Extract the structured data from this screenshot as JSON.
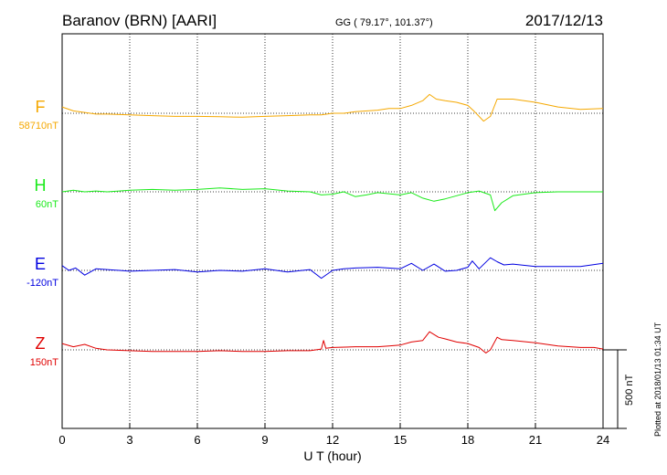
{
  "header": {
    "station": "Baranov (BRN)  [AARI]",
    "coords": "GG ( 79.17°, 101.37°)",
    "date": "2017/12/13"
  },
  "footer_note": "Plotted at 2018/01/13 01:34 UT",
  "scale_label": "500 nT",
  "chart_data": {
    "type": "line",
    "xlabel": "U T (hour)",
    "xlim": [
      0,
      24
    ],
    "xticks": [
      0,
      3,
      6,
      9,
      12,
      15,
      18,
      21,
      24
    ],
    "grid": true,
    "series": [
      {
        "name": "F",
        "baseline_label": "58710nT",
        "baseline_value": 58710,
        "color": "#f5a800",
        "values": [
          [
            0,
            58750
          ],
          [
            0.5,
            58725
          ],
          [
            1,
            58715
          ],
          [
            1.5,
            58705
          ],
          [
            2,
            58705
          ],
          [
            3,
            58700
          ],
          [
            4,
            58695
          ],
          [
            5,
            58690
          ],
          [
            6,
            58690
          ],
          [
            7,
            58688
          ],
          [
            8,
            58685
          ],
          [
            9,
            58690
          ],
          [
            10,
            58695
          ],
          [
            11,
            58700
          ],
          [
            11.5,
            58700
          ],
          [
            12,
            58710
          ],
          [
            12.5,
            58710
          ],
          [
            13,
            58720
          ],
          [
            14,
            58730
          ],
          [
            14.5,
            58740
          ],
          [
            15,
            58740
          ],
          [
            15.5,
            58760
          ],
          [
            16,
            58790
          ],
          [
            16.3,
            58830
          ],
          [
            16.6,
            58800
          ],
          [
            17,
            58790
          ],
          [
            17.5,
            58780
          ],
          [
            18,
            58760
          ],
          [
            18.3,
            58720
          ],
          [
            18.7,
            58660
          ],
          [
            19,
            58690
          ],
          [
            19.3,
            58800
          ],
          [
            19.5,
            58800
          ],
          [
            20,
            58800
          ],
          [
            20.5,
            58790
          ],
          [
            21,
            58780
          ],
          [
            22,
            58750
          ],
          [
            23,
            58735
          ],
          [
            24,
            58740
          ]
        ]
      },
      {
        "name": "H",
        "baseline_label": "60nT",
        "baseline_value": 60,
        "color": "#1aea1a",
        "values": [
          [
            0,
            60
          ],
          [
            0.5,
            70
          ],
          [
            1,
            60
          ],
          [
            1.5,
            65
          ],
          [
            2,
            60
          ],
          [
            3,
            70
          ],
          [
            4,
            75
          ],
          [
            5,
            70
          ],
          [
            6,
            75
          ],
          [
            7,
            85
          ],
          [
            8,
            75
          ],
          [
            9,
            80
          ],
          [
            10,
            65
          ],
          [
            11,
            60
          ],
          [
            11.5,
            40
          ],
          [
            12,
            45
          ],
          [
            12.5,
            60
          ],
          [
            13,
            30
          ],
          [
            13.5,
            40
          ],
          [
            14,
            55
          ],
          [
            15,
            40
          ],
          [
            15.5,
            55
          ],
          [
            16,
            20
          ],
          [
            16.5,
            0
          ],
          [
            17,
            15
          ],
          [
            17.5,
            35
          ],
          [
            18,
            55
          ],
          [
            18.5,
            65
          ],
          [
            19,
            40
          ],
          [
            19.2,
            -60
          ],
          [
            19.5,
            -10
          ],
          [
            20,
            35
          ],
          [
            21,
            55
          ],
          [
            22,
            60
          ],
          [
            23,
            60
          ],
          [
            24,
            60
          ]
        ]
      },
      {
        "name": "E",
        "baseline_label": "-120nT",
        "baseline_value": -120,
        "color": "#0000e0",
        "values": [
          [
            0,
            -90
          ],
          [
            0.3,
            -120
          ],
          [
            0.6,
            -105
          ],
          [
            1,
            -150
          ],
          [
            1.5,
            -110
          ],
          [
            2,
            -115
          ],
          [
            3,
            -125
          ],
          [
            4,
            -120
          ],
          [
            5,
            -115
          ],
          [
            6,
            -130
          ],
          [
            7,
            -120
          ],
          [
            8,
            -125
          ],
          [
            9,
            -110
          ],
          [
            10,
            -130
          ],
          [
            11,
            -115
          ],
          [
            11.5,
            -170
          ],
          [
            12,
            -120
          ],
          [
            12.5,
            -110
          ],
          [
            13,
            -105
          ],
          [
            14,
            -100
          ],
          [
            15,
            -110
          ],
          [
            15.5,
            -75
          ],
          [
            16,
            -120
          ],
          [
            16.5,
            -80
          ],
          [
            17,
            -125
          ],
          [
            17.5,
            -120
          ],
          [
            18,
            -100
          ],
          [
            18.2,
            -60
          ],
          [
            18.5,
            -110
          ],
          [
            19,
            -40
          ],
          [
            19.3,
            -65
          ],
          [
            19.6,
            -85
          ],
          [
            20,
            -80
          ],
          [
            21,
            -95
          ],
          [
            22,
            -95
          ],
          [
            23,
            -95
          ],
          [
            24,
            -75
          ]
        ]
      },
      {
        "name": "Z",
        "baseline_label": "150nT",
        "baseline_value": 150,
        "color": "#e00000",
        "values": [
          [
            0,
            190
          ],
          [
            0.5,
            170
          ],
          [
            1,
            185
          ],
          [
            1.5,
            160
          ],
          [
            2,
            150
          ],
          [
            3,
            145
          ],
          [
            4,
            140
          ],
          [
            5,
            140
          ],
          [
            6,
            140
          ],
          [
            7,
            145
          ],
          [
            8,
            140
          ],
          [
            9,
            140
          ],
          [
            10,
            145
          ],
          [
            11,
            145
          ],
          [
            11.5,
            155
          ],
          [
            11.6,
            210
          ],
          [
            11.7,
            160
          ],
          [
            12,
            165
          ],
          [
            13,
            170
          ],
          [
            14,
            170
          ],
          [
            14.5,
            175
          ],
          [
            15,
            180
          ],
          [
            15.5,
            200
          ],
          [
            16,
            210
          ],
          [
            16.3,
            265
          ],
          [
            16.7,
            230
          ],
          [
            17,
            220
          ],
          [
            17.5,
            200
          ],
          [
            18,
            190
          ],
          [
            18.5,
            165
          ],
          [
            18.8,
            130
          ],
          [
            19,
            150
          ],
          [
            19.3,
            230
          ],
          [
            19.5,
            215
          ],
          [
            20,
            210
          ],
          [
            21,
            195
          ],
          [
            22,
            175
          ],
          [
            23,
            165
          ],
          [
            23.6,
            165
          ],
          [
            24,
            155
          ]
        ]
      }
    ]
  }
}
